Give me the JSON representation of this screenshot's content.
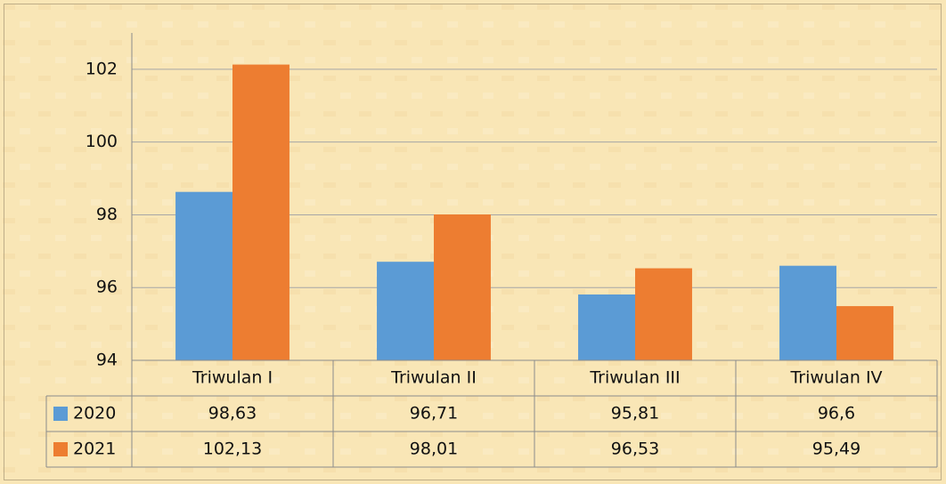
{
  "chart_data": {
    "type": "bar",
    "categories": [
      "Triwulan I",
      "Triwulan II",
      "Triwulan III",
      "Triwulan IV"
    ],
    "series": [
      {
        "name": "2020",
        "color": "#5b9bd5",
        "values": [
          98.63,
          96.71,
          95.81,
          96.6
        ],
        "value_labels": [
          "98,63",
          "96,71",
          "95,81",
          "96,6"
        ]
      },
      {
        "name": "2021",
        "color": "#ed7d31",
        "values": [
          102.13,
          98.01,
          96.53,
          95.49
        ],
        "value_labels": [
          "102,13",
          "98,01",
          "96,53",
          "95,49"
        ]
      }
    ],
    "ylim": [
      94,
      103
    ],
    "yticks": [
      94,
      96,
      98,
      100,
      102
    ],
    "grid": true,
    "data_table": true
  }
}
